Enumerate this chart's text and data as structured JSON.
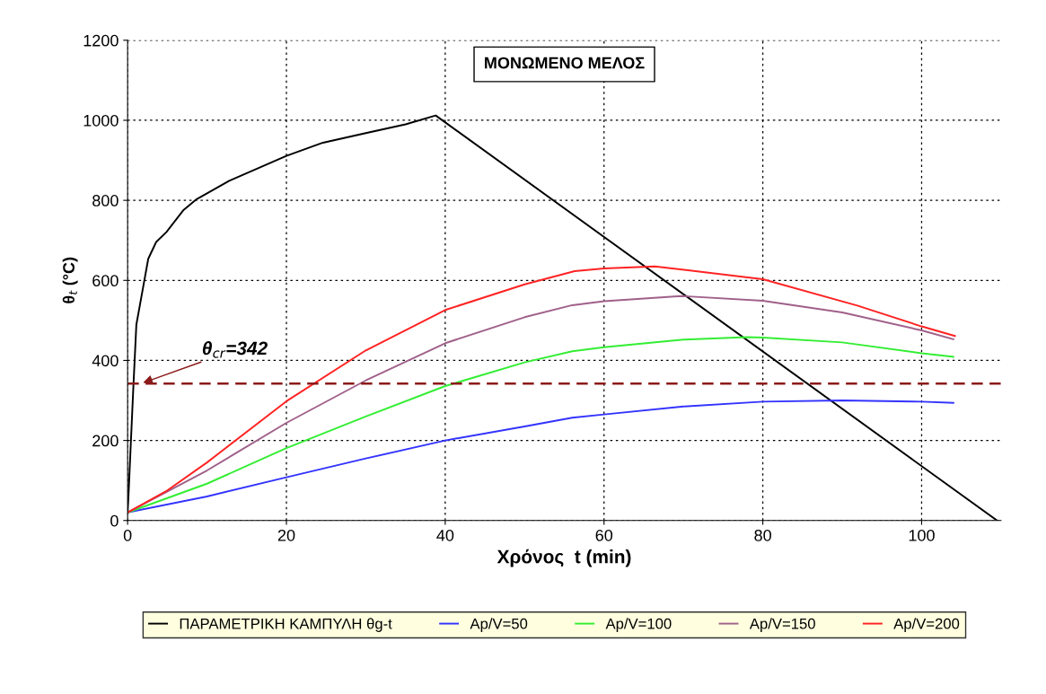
{
  "chart_data": {
    "type": "line",
    "title": "ΜΟΝΩΜΕΝΟ ΜΕΛΟΣ",
    "xlabel": "Χρόνος  t (min)",
    "ylabel": "θ$_{t}$ (°C)",
    "xlim": [
      0,
      110
    ],
    "xticks": [
      0,
      20,
      40,
      60,
      80,
      100
    ],
    "ylim": [
      0,
      1200
    ],
    "yticks": [
      0,
      200,
      400,
      600,
      800,
      1000,
      1200
    ],
    "grid": true,
    "legend": "bottom",
    "marker": "none",
    "line_style": "solid",
    "series": [
      {
        "name": "ΠΑΡΑΜΕΤΡΙΚΗ ΚΑΜΠΥΛΗ θg-t",
        "color": "#000000",
        "x": [
          0,
          0.1,
          0.7,
          1.1,
          2,
          2.6,
          3.6,
          4.9,
          7,
          8.7,
          12.8,
          20,
          24.6,
          30,
          35,
          38.8,
          109.5
        ],
        "values": [
          20,
          58,
          323,
          489,
          588,
          654,
          696,
          721,
          775,
          803,
          849,
          911,
          944,
          968,
          990,
          1012,
          0
        ]
      },
      {
        "name": "Ap/V=50",
        "color": "#3333ff",
        "x": [
          0,
          10,
          20,
          30,
          40,
          50,
          56,
          60,
          70,
          80,
          90,
          100,
          104
        ],
        "values": [
          20,
          60,
          108,
          155,
          200,
          235,
          257,
          265,
          285,
          297,
          300,
          297,
          294
        ]
      },
      {
        "name": "Ap/V=100",
        "color": "#33ee33",
        "x": [
          0,
          10,
          20,
          30,
          40,
          50,
          56,
          60,
          70,
          78,
          80,
          90,
          100,
          104
        ],
        "values": [
          20,
          92,
          181,
          260,
          336,
          395,
          423,
          433,
          452,
          458,
          457,
          445,
          418,
          409
        ]
      },
      {
        "name": "Ap/V=150",
        "color": "#a0608a",
        "x": [
          0,
          10,
          20,
          30,
          40,
          50,
          56,
          60,
          69.7,
          80,
          90,
          100,
          104
        ],
        "values": [
          20,
          125,
          244,
          350,
          443,
          508,
          538,
          548,
          561,
          549,
          520,
          475,
          453
        ]
      },
      {
        "name": "Ap/V=200",
        "color": "#ff2222",
        "x": [
          0,
          5,
          10,
          20,
          30,
          40,
          50,
          56.3,
          60,
          66.4,
          80,
          91.9,
          100,
          104.2
        ],
        "values": [
          20,
          75,
          145,
          298,
          425,
          526,
          590,
          623,
          630,
          635,
          603,
          537,
          485,
          461
        ]
      }
    ],
    "ref_lines": [
      {
        "axis": "y",
        "value": 342,
        "label": "θ$_{cr}$=342",
        "color": "#8b1a1a",
        "line_style": "dashed"
      }
    ]
  }
}
